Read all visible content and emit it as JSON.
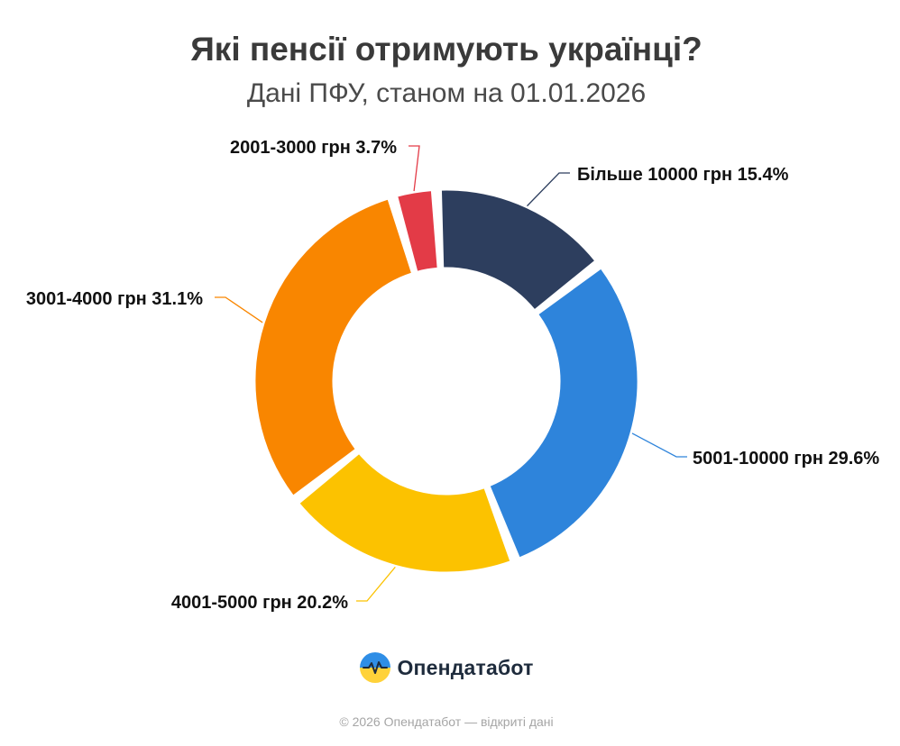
{
  "chart_data": {
    "type": "pie",
    "variant": "donut",
    "title": "Які пенсії отримують українці?",
    "subtitle": "Дані ПФУ, станом на 01.01.2026",
    "slices": [
      {
        "label": "Більше 10000 грн",
        "value": 15.4,
        "display": "Більше 10000 грн 15.4%",
        "color": "#2d3e5e"
      },
      {
        "label": "5001-10000 грн",
        "value": 29.6,
        "display": "5001-10000 грн 29.6%",
        "color": "#2e84db"
      },
      {
        "label": "4001-5000 грн",
        "value": 20.2,
        "display": "4001-5000 грн 20.2%",
        "color": "#fcc200"
      },
      {
        "label": "3001-4000 грн",
        "value": 31.1,
        "display": "3001-4000 грн 31.1%",
        "color": "#f98600"
      },
      {
        "label": "2001-3000 грн",
        "value": 3.7,
        "display": "2001-3000 грн 3.7%",
        "color": "#e33b47"
      }
    ],
    "legend": "none"
  },
  "brand": {
    "name": "Опендатабот",
    "logo_icon": "opendatabot-logo-icon",
    "colors": {
      "blue": "#2f8ee6",
      "yellow": "#ffd23a",
      "line": "#1e2b3c"
    }
  },
  "footer": {
    "text": "© 2026 Опендатабот — відкриті дані"
  }
}
